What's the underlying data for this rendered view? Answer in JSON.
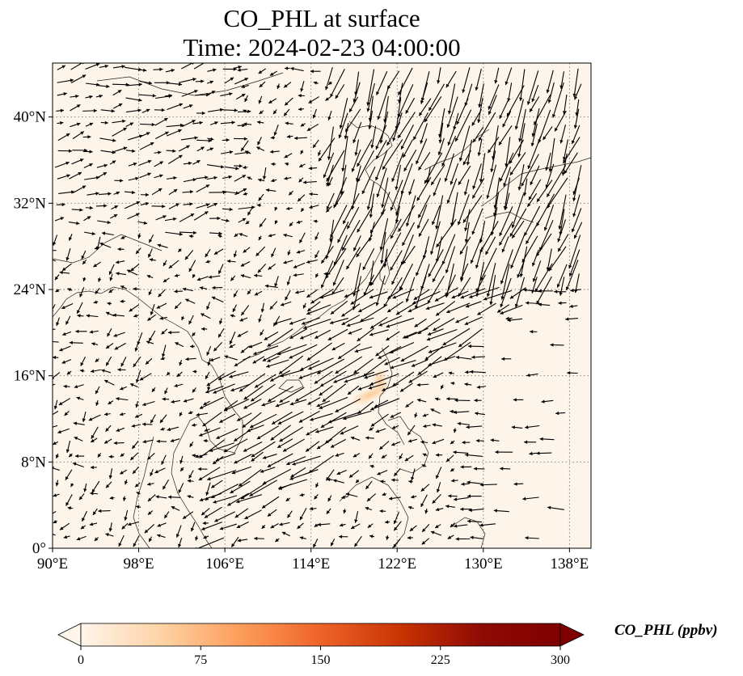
{
  "title": {
    "line1": "CO_PHL at surface",
    "line2": "Time: 2024-02-23 04:00:00"
  },
  "map": {
    "lon_range": [
      90,
      140
    ],
    "lat_range": [
      0,
      45
    ],
    "gridlines": "dotted",
    "background_color": "#fdf5ea",
    "plume_color": "#fbd3a3"
  },
  "axes": {
    "x_ticks": [
      "90°E",
      "98°E",
      "106°E",
      "114°E",
      "122°E",
      "130°E",
      "138°E"
    ],
    "x_tick_values": [
      90,
      98,
      106,
      114,
      122,
      130,
      138
    ],
    "y_ticks": [
      "0°",
      "8°N",
      "16°N",
      "24°N",
      "32°N",
      "40°N"
    ],
    "y_tick_values": [
      0,
      8,
      16,
      24,
      32,
      40
    ]
  },
  "colorbar": {
    "label": "CO_PHL (ppbv)",
    "ticks": [
      "0",
      "75",
      "150",
      "225",
      "300"
    ],
    "tick_values": [
      0,
      75,
      150,
      225,
      300
    ],
    "range": [
      0,
      300
    ],
    "extend": "both",
    "cmap_stops": [
      "#fff5eb",
      "#fdd3a5",
      "#fd9d5a",
      "#ee6329",
      "#c93303",
      "#8f0b04",
      "#7f0000"
    ]
  }
}
